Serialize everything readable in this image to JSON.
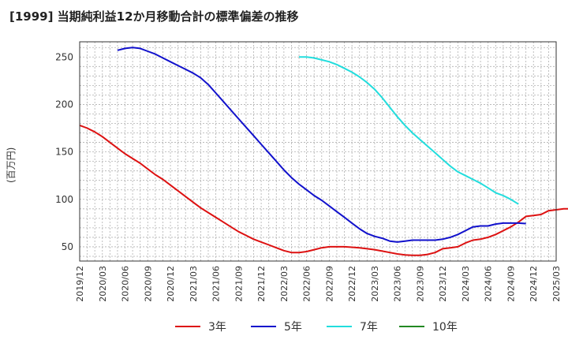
{
  "chart_data": {
    "type": "line",
    "title": "[1999]  当期純利益12か月移動合計の標準偏差の推移",
    "ylabel": "(百万円)",
    "xlabel": "",
    "x_ticks": [
      "2019/12",
      "2020/03",
      "2020/06",
      "2020/09",
      "2020/12",
      "2021/03",
      "2021/06",
      "2021/09",
      "2021/12",
      "2022/03",
      "2022/06",
      "2022/09",
      "2022/12",
      "2023/03",
      "2023/06",
      "2023/09",
      "2023/12",
      "2024/03",
      "2024/06",
      "2024/09",
      "2024/12",
      "2025/03"
    ],
    "y_ticks": [
      50,
      100,
      150,
      200,
      250
    ],
    "ylim": [
      35,
      266
    ],
    "grid": true,
    "legend_position": "bottom",
    "series": [
      {
        "name": "3年",
        "color": "#dd1111",
        "points": [
          [
            "2019/12",
            178
          ],
          [
            "2020/01",
            175
          ],
          [
            "2020/02",
            171
          ],
          [
            "2020/03",
            166
          ],
          [
            "2020/04",
            160
          ],
          [
            "2020/05",
            154
          ],
          [
            "2020/06",
            148
          ],
          [
            "2020/07",
            143
          ],
          [
            "2020/08",
            138
          ],
          [
            "2020/09",
            132
          ],
          [
            "2020/10",
            126
          ],
          [
            "2020/11",
            121
          ],
          [
            "2020/12",
            115
          ],
          [
            "2021/01",
            109
          ],
          [
            "2021/02",
            103
          ],
          [
            "2021/03",
            97
          ],
          [
            "2021/04",
            91
          ],
          [
            "2021/05",
            86
          ],
          [
            "2021/06",
            81
          ],
          [
            "2021/07",
            76
          ],
          [
            "2021/08",
            71
          ],
          [
            "2021/09",
            66
          ],
          [
            "2021/10",
            62
          ],
          [
            "2021/11",
            58
          ],
          [
            "2021/12",
            55
          ],
          [
            "2022/01",
            52
          ],
          [
            "2022/02",
            49
          ],
          [
            "2022/03",
            46
          ],
          [
            "2022/04",
            44
          ],
          [
            "2022/05",
            44
          ],
          [
            "2022/06",
            45
          ],
          [
            "2022/07",
            47
          ],
          [
            "2022/08",
            49
          ],
          [
            "2022/09",
            50
          ],
          [
            "2022/10",
            50
          ],
          [
            "2022/11",
            50
          ],
          [
            "2022/12",
            49.5
          ],
          [
            "2023/01",
            49
          ],
          [
            "2023/02",
            48
          ],
          [
            "2023/03",
            47
          ],
          [
            "2023/04",
            45.5
          ],
          [
            "2023/05",
            44
          ],
          [
            "2023/06",
            42.5
          ],
          [
            "2023/07",
            41.5
          ],
          [
            "2023/08",
            41
          ],
          [
            "2023/09",
            41
          ],
          [
            "2023/10",
            42
          ],
          [
            "2023/11",
            44
          ],
          [
            "2023/12",
            48
          ],
          [
            "2024/01",
            49
          ],
          [
            "2024/02",
            50
          ],
          [
            "2024/03",
            54
          ],
          [
            "2024/04",
            57
          ],
          [
            "2024/05",
            58
          ],
          [
            "2024/06",
            60
          ],
          [
            "2024/07",
            63
          ],
          [
            "2024/08",
            67
          ],
          [
            "2024/09",
            71
          ],
          [
            "2024/10",
            76
          ],
          [
            "2024/11",
            82
          ],
          [
            "2024/12",
            83
          ],
          [
            "2025/01",
            84
          ],
          [
            "2025/02",
            88
          ],
          [
            "2025/03",
            89
          ],
          [
            "2025/04",
            90
          ],
          [
            "2025/05",
            90
          ]
        ]
      },
      {
        "name": "5年",
        "color": "#1111cc",
        "points": [
          [
            "2020/05",
            257
          ],
          [
            "2020/06",
            259
          ],
          [
            "2020/07",
            260
          ],
          [
            "2020/08",
            259
          ],
          [
            "2020/09",
            256
          ],
          [
            "2020/10",
            253
          ],
          [
            "2020/11",
            249
          ],
          [
            "2020/12",
            245
          ],
          [
            "2021/01",
            241
          ],
          [
            "2021/02",
            237
          ],
          [
            "2021/03",
            233
          ],
          [
            "2021/04",
            228
          ],
          [
            "2021/05",
            221
          ],
          [
            "2021/06",
            212
          ],
          [
            "2021/07",
            203
          ],
          [
            "2021/08",
            194
          ],
          [
            "2021/09",
            185
          ],
          [
            "2021/10",
            176
          ],
          [
            "2021/11",
            167
          ],
          [
            "2021/12",
            158
          ],
          [
            "2022/01",
            149
          ],
          [
            "2022/02",
            140
          ],
          [
            "2022/03",
            131
          ],
          [
            "2022/04",
            123
          ],
          [
            "2022/05",
            116
          ],
          [
            "2022/06",
            110
          ],
          [
            "2022/07",
            104
          ],
          [
            "2022/08",
            99
          ],
          [
            "2022/09",
            93
          ],
          [
            "2022/10",
            87
          ],
          [
            "2022/11",
            81
          ],
          [
            "2022/12",
            75
          ],
          [
            "2023/01",
            69
          ],
          [
            "2023/02",
            64
          ],
          [
            "2023/03",
            61
          ],
          [
            "2023/04",
            59
          ],
          [
            "2023/05",
            56
          ],
          [
            "2023/06",
            55
          ],
          [
            "2023/07",
            56
          ],
          [
            "2023/08",
            57
          ],
          [
            "2023/09",
            57
          ],
          [
            "2023/10",
            57
          ],
          [
            "2023/11",
            57
          ],
          [
            "2023/12",
            58
          ],
          [
            "2024/01",
            60
          ],
          [
            "2024/02",
            63
          ],
          [
            "2024/03",
            67
          ],
          [
            "2024/04",
            71
          ],
          [
            "2024/05",
            72
          ],
          [
            "2024/06",
            72
          ],
          [
            "2024/07",
            74
          ],
          [
            "2024/08",
            75
          ],
          [
            "2024/09",
            75
          ],
          [
            "2024/10",
            75
          ],
          [
            "2024/11",
            74.5
          ]
        ]
      },
      {
        "name": "7年",
        "color": "#22dddd",
        "points": [
          [
            "2022/05",
            250
          ],
          [
            "2022/06",
            250
          ],
          [
            "2022/07",
            249
          ],
          [
            "2022/08",
            247
          ],
          [
            "2022/09",
            245
          ],
          [
            "2022/10",
            242
          ],
          [
            "2022/11",
            238
          ],
          [
            "2022/12",
            234
          ],
          [
            "2023/01",
            229
          ],
          [
            "2023/02",
            223
          ],
          [
            "2023/03",
            216
          ],
          [
            "2023/04",
            207
          ],
          [
            "2023/05",
            197
          ],
          [
            "2023/06",
            187
          ],
          [
            "2023/07",
            178
          ],
          [
            "2023/08",
            170
          ],
          [
            "2023/09",
            163
          ],
          [
            "2023/10",
            156
          ],
          [
            "2023/11",
            149
          ],
          [
            "2023/12",
            142
          ],
          [
            "2024/01",
            135
          ],
          [
            "2024/02",
            129
          ],
          [
            "2024/03",
            125
          ],
          [
            "2024/04",
            121
          ],
          [
            "2024/05",
            117
          ],
          [
            "2024/06",
            112
          ],
          [
            "2024/07",
            107
          ],
          [
            "2024/08",
            104
          ],
          [
            "2024/09",
            100
          ],
          [
            "2024/10",
            95
          ]
        ]
      },
      {
        "name": "10年",
        "color": "#228822",
        "points": []
      }
    ]
  }
}
